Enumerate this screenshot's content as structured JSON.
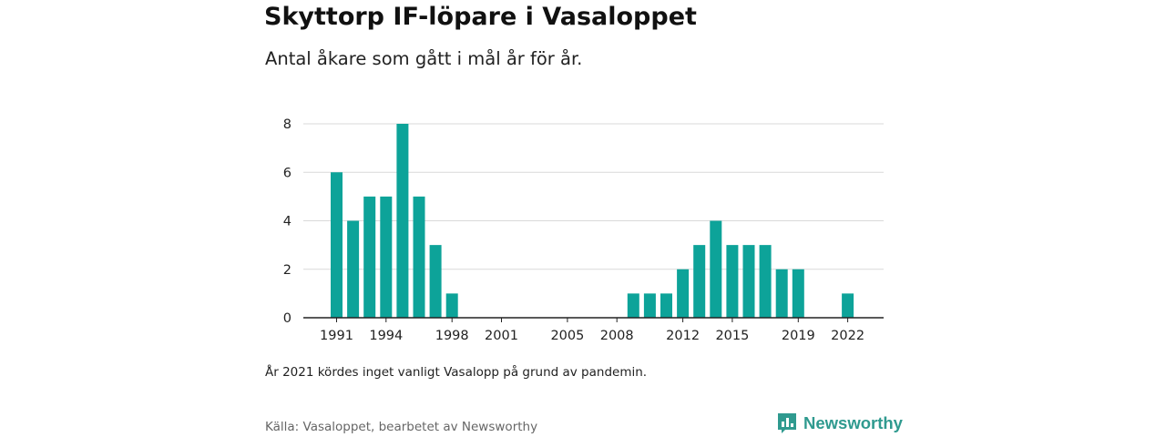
{
  "header": {
    "title": "Skyttorp IF-löpare i Vasaloppet",
    "subtitle": "Antal åkare som gått i mål år för år."
  },
  "footer": {
    "note": "År 2021 kördes inget vanligt Vasalopp på grund av pandemin.",
    "source": "Källa: Vasaloppet, bearbetet av Newsworthy",
    "brand": "Newsworthy",
    "brand_icon": "bar-chart-logo-icon",
    "brand_color": "#2f9a8f"
  },
  "chart_data": {
    "type": "bar",
    "title": "Skyttorp IF-löpare i Vasaloppet",
    "subtitle": "Antal åkare som gått i mål år för år.",
    "x": [
      1991,
      1992,
      1993,
      1994,
      1995,
      1996,
      1997,
      1998,
      2009,
      2010,
      2011,
      2012,
      2013,
      2014,
      2015,
      2016,
      2017,
      2018,
      2019,
      2022
    ],
    "values": [
      6,
      4,
      5,
      5,
      8,
      5,
      3,
      1,
      1,
      1,
      1,
      2,
      3,
      4,
      3,
      3,
      3,
      2,
      2,
      1
    ],
    "xlim": [
      1990,
      2024
    ],
    "ylim": [
      0,
      8
    ],
    "x_ticks": [
      1991,
      1994,
      1998,
      2001,
      2005,
      2008,
      2012,
      2015,
      2019,
      2022
    ],
    "y_ticks": [
      0,
      2,
      4,
      6,
      8
    ],
    "xlabel": "",
    "ylabel": "",
    "grid": true,
    "bar_color": "#0da399",
    "grid_color": "#d9d9d9"
  }
}
